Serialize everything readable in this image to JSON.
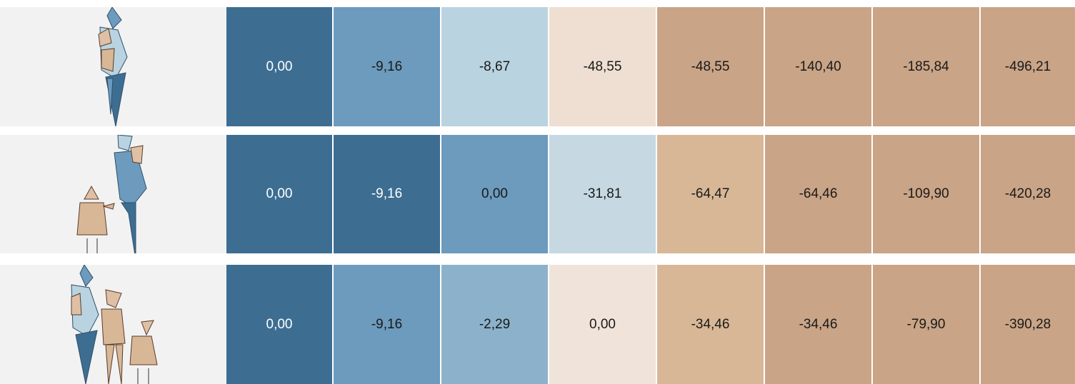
{
  "table": {
    "rows": [
      {
        "cells": [
          "0,00",
          "-9,16",
          "-8,67",
          "-48,55",
          "-48,55",
          "-140,40",
          "-185,84",
          "-496,21"
        ],
        "colors": [
          "#3d6e92",
          "#6c9bbd",
          "#b9d3e0",
          "#eedfd2",
          "#c9a486",
          "#c9a486",
          "#c9a486",
          "#c9a486"
        ]
      },
      {
        "cells": [
          "0,00",
          "-9,16",
          "0,00",
          "-31,81",
          "-64,47",
          "-64,46",
          "-109,90",
          "-420,28"
        ],
        "colors": [
          "#3d6e92",
          "#3d6e92",
          "#6c9bbd",
          "#c6d8e2",
          "#d8b797",
          "#c9a486",
          "#c9a486",
          "#c9a486"
        ]
      },
      {
        "cells": [
          "0,00",
          "-9,16",
          "-2,29",
          "0,00",
          "-34,46",
          "-34,46",
          "-79,90",
          "-390,28"
        ],
        "colors": [
          "#3d6e92",
          "#6c9bbd",
          "#8cb2cb",
          "#f0e4da",
          "#d8b797",
          "#c9a486",
          "#c9a486",
          "#c9a486"
        ]
      }
    ]
  }
}
